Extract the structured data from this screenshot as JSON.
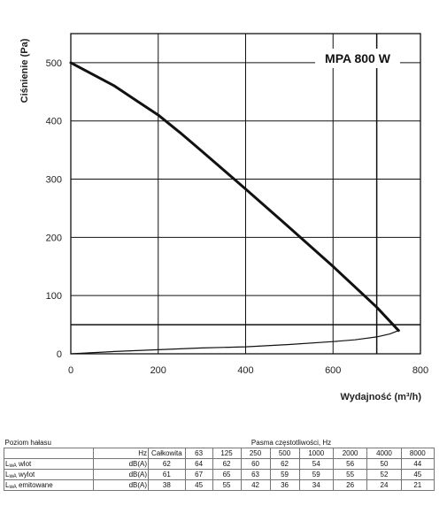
{
  "chart_data": {
    "type": "line",
    "title": "",
    "annotation": "MPA 800 W",
    "xlabel": "Wydajność (m³/h)",
    "ylabel": "Ciśnienie (Pa)",
    "xlim": [
      0,
      800
    ],
    "ylim": [
      0,
      550
    ],
    "x_ticks": [
      "0",
      "200",
      "400",
      "600",
      "800"
    ],
    "y_ticks": [
      "0",
      "100",
      "200",
      "300",
      "400",
      "500"
    ],
    "grid": true,
    "legend": "none",
    "series": [
      {
        "x": [
          0,
          100,
          150,
          200,
          250,
          300,
          400,
          500,
          600,
          700,
          750
        ],
        "y": [
          500,
          460,
          435,
          410,
          380,
          348,
          283,
          217,
          150,
          80,
          40
        ]
      },
      {
        "x": [
          0,
          100,
          200,
          300,
          400,
          500,
          600,
          650,
          700,
          730,
          750
        ],
        "y": [
          0,
          4,
          7,
          10,
          12,
          16,
          21,
          24,
          29,
          34,
          40
        ]
      }
    ],
    "reference_lines": {
      "y": 50,
      "x": 700
    }
  },
  "table": {
    "title": "Poziom hałasu",
    "group_header": "Pasma częstotliwości, Hz",
    "unit_row_label": "Hz",
    "columns": [
      "Całkowita",
      "63",
      "125",
      "250",
      "500",
      "1000",
      "2000",
      "4000",
      "8000"
    ],
    "rows": [
      {
        "label_main": "L",
        "label_sub": "wA",
        "label_rest": " wlot",
        "unit": "dB(A)",
        "values": [
          "62",
          "64",
          "62",
          "60",
          "62",
          "54",
          "56",
          "50",
          "44"
        ]
      },
      {
        "label_main": "L",
        "label_sub": "wA",
        "label_rest": " wylot",
        "unit": "dB(A)",
        "values": [
          "61",
          "67",
          "65",
          "63",
          "59",
          "59",
          "55",
          "52",
          "45"
        ]
      },
      {
        "label_main": "L",
        "label_sub": "wA",
        "label_rest": " emitowane",
        "unit": "dB(A)",
        "values": [
          "38",
          "45",
          "55",
          "42",
          "36",
          "34",
          "26",
          "24",
          "21"
        ]
      }
    ]
  }
}
